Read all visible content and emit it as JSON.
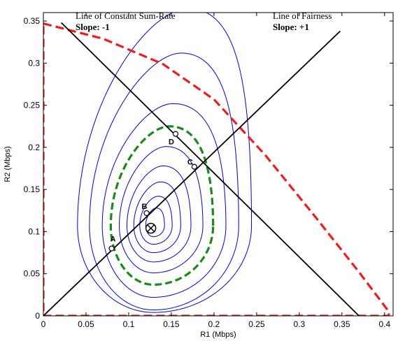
{
  "chart_data": {
    "type": "line",
    "xlabel": "R1 (Mbps)",
    "ylabel": "R2 (Mbps)",
    "xlim": [
      0,
      0.41
    ],
    "ylim": [
      0,
      0.36
    ],
    "xticks": [
      {
        "v": 0,
        "label": "0"
      },
      {
        "v": 0.05,
        "label": "0.05"
      },
      {
        "v": 0.1,
        "label": "0.1"
      },
      {
        "v": 0.15,
        "label": "0.15"
      },
      {
        "v": 0.2,
        "label": "0.2"
      },
      {
        "v": 0.25,
        "label": "0.25"
      },
      {
        "v": 0.3,
        "label": "0.3"
      },
      {
        "v": 0.35,
        "label": "0.35"
      },
      {
        "v": 0.4,
        "label": "0.4"
      }
    ],
    "yticks": [
      {
        "v": 0,
        "label": "0"
      },
      {
        "v": 0.05,
        "label": "0.05"
      },
      {
        "v": 0.1,
        "label": "0.1"
      },
      {
        "v": 0.15,
        "label": "0.15"
      },
      {
        "v": 0.2,
        "label": "0.2"
      },
      {
        "v": 0.25,
        "label": "0.25"
      },
      {
        "v": 0.3,
        "label": "0.3"
      },
      {
        "v": 0.35,
        "label": "0.35"
      }
    ],
    "grid": false,
    "colors": {
      "contour": "#0000cc",
      "dashed_red": "#ee1c1c",
      "dashed_green": "#1a8a1a",
      "line": "#000000"
    },
    "lines": [
      {
        "name": "Line of Constant Sum-Rate",
        "points": [
          [
            0.021,
            0.348
          ],
          [
            0.37,
            0
          ]
        ]
      },
      {
        "name": "Line of Fairness",
        "points": [
          [
            0,
            0
          ],
          [
            0.348,
            0.338
          ]
        ]
      }
    ],
    "dashed_red_boundary": [
      [
        0,
        0.347
      ],
      [
        0.07,
        0.329
      ],
      [
        0.14,
        0.299
      ],
      [
        0.2,
        0.257
      ],
      [
        0.26,
        0.191
      ],
      [
        0.32,
        0.116
      ],
      [
        0.37,
        0.052
      ],
      [
        0.405,
        0.005
      ],
      [
        0.405,
        0
      ],
      [
        0,
        0
      ],
      [
        0,
        0.347
      ]
    ],
    "dashed_green_contour": {
      "center": [
        0.129,
        0.107
      ],
      "rx_left": 0.05,
      "rx_right": 0.07,
      "ry_bottom": 0.07,
      "ry_top": 0.118
    },
    "contours": [
      {
        "center": [
          0.129,
          0.107
        ],
        "rx_left": 0.009,
        "rx_right": 0.013,
        "ry_bottom": 0.013,
        "ry_top": 0.021
      },
      {
        "center": [
          0.129,
          0.107
        ],
        "rx_left": 0.016,
        "rx_right": 0.022,
        "ry_bottom": 0.022,
        "ry_top": 0.035
      },
      {
        "center": [
          0.129,
          0.107
        ],
        "rx_left": 0.023,
        "rx_right": 0.032,
        "ry_bottom": 0.032,
        "ry_top": 0.052
      },
      {
        "center": [
          0.129,
          0.107
        ],
        "rx_left": 0.031,
        "rx_right": 0.044,
        "ry_bottom": 0.043,
        "ry_top": 0.071
      },
      {
        "center": [
          0.129,
          0.107
        ],
        "rx_left": 0.04,
        "rx_right": 0.058,
        "ry_bottom": 0.056,
        "ry_top": 0.094
      },
      {
        "center": [
          0.129,
          0.107
        ],
        "rx_left": 0.06,
        "rx_right": 0.085,
        "ry_bottom": 0.085,
        "ry_top": 0.145
      },
      {
        "center": [
          0.129,
          0.107
        ],
        "rx_left": 0.075,
        "rx_right": 0.1,
        "ry_bottom": 0.1,
        "ry_top": 0.205
      },
      {
        "center": [
          0.129,
          0.107
        ],
        "rx_left": 0.089,
        "rx_right": 0.115,
        "ry_bottom": 0.103,
        "ry_top": 0.258
      }
    ],
    "optimum": [
      0.126,
      0.104
    ],
    "points": [
      {
        "label": "A",
        "x": 0.08,
        "y": 0.08
      },
      {
        "label": "B",
        "x": 0.121,
        "y": 0.122
      },
      {
        "label": "C",
        "x": 0.177,
        "y": 0.177
      },
      {
        "label": "D",
        "x": 0.155,
        "y": 0.216
      }
    ],
    "annotations": [
      {
        "title": "Line of Constant Sum-Rate",
        "subtitle": "Slope: -1"
      },
      {
        "title": "Line of Fairness",
        "subtitle": "Slope: +1"
      }
    ]
  }
}
